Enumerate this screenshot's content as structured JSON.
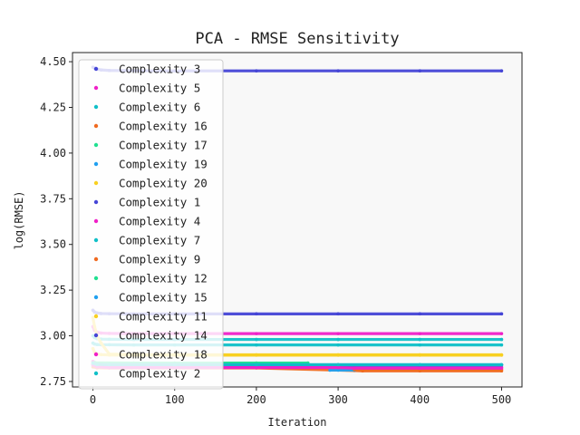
{
  "chart_data": {
    "type": "scatter",
    "title": "PCA - RMSE Sensitivity",
    "xlabel": "Iteration",
    "ylabel": "log(RMSE)",
    "xlim": [
      -25,
      525
    ],
    "ylim": [
      2.72,
      4.55
    ],
    "x_ticks": [
      0,
      100,
      200,
      300,
      400,
      500
    ],
    "y_ticks": [
      2.75,
      3.0,
      3.25,
      3.5,
      3.75,
      4.0,
      4.25,
      4.5
    ],
    "x_tick_labels": [
      "0",
      "100",
      "200",
      "300",
      "400",
      "500"
    ],
    "y_tick_labels": [
      "2.75",
      "3.00",
      "3.25",
      "3.50",
      "3.75",
      "4.00",
      "4.25",
      "4.50"
    ],
    "grid": false,
    "legend_position": "upper-left",
    "background": "#f8f8f8",
    "series": [
      {
        "name": "Complexity 3",
        "color": "#4545d6",
        "x": [
          0,
          2,
          5,
          10,
          20,
          50,
          100,
          200,
          300,
          400,
          500
        ],
        "y": [
          4.47,
          4.465,
          4.46,
          4.455,
          4.452,
          4.451,
          4.45,
          4.45,
          4.45,
          4.45,
          4.45
        ]
      },
      {
        "name": "Complexity 5",
        "color": "#f020c8",
        "x": [
          0,
          2,
          5,
          10,
          20,
          50,
          100,
          200,
          300,
          400,
          500
        ],
        "y": [
          3.05,
          3.03,
          3.02,
          3.015,
          3.013,
          3.012,
          3.012,
          3.012,
          3.012,
          3.012,
          3.012
        ]
      },
      {
        "name": "Complexity 6",
        "color": "#10c0c8",
        "x": [
          0,
          2,
          5,
          10,
          20,
          50,
          100,
          200,
          300,
          400,
          500
        ],
        "y": [
          3.0,
          2.99,
          2.985,
          2.982,
          2.981,
          2.98,
          2.98,
          2.98,
          2.98,
          2.98,
          2.98
        ]
      },
      {
        "name": "Complexity 16",
        "color": "#f06a20",
        "x": [
          0,
          5,
          20,
          100,
          200,
          320,
          330,
          400,
          500
        ],
        "y": [
          2.83,
          2.825,
          2.824,
          2.824,
          2.824,
          2.81,
          2.808,
          2.808,
          2.808
        ]
      },
      {
        "name": "Complexity 17",
        "color": "#20e090",
        "x": [
          0,
          5,
          20,
          100,
          200,
          263
        ],
        "y": [
          2.86,
          2.85,
          2.85,
          2.849,
          2.849,
          2.849
        ]
      },
      {
        "name": "Complexity 19",
        "color": "#20a0f0",
        "x": [
          290,
          300,
          320
        ],
        "y": [
          2.812,
          2.812,
          2.812
        ]
      },
      {
        "name": "Complexity 20",
        "color": "#f8d020",
        "x": [
          0,
          2,
          5,
          10,
          20,
          50,
          100,
          200,
          300,
          400,
          500
        ],
        "y": [
          2.93,
          2.91,
          2.9,
          2.897,
          2.895,
          2.894,
          2.894,
          2.894,
          2.894,
          2.894,
          2.894
        ]
      },
      {
        "name": "Complexity 1",
        "color": "#4545d6",
        "x": [
          0,
          2,
          5,
          10,
          20,
          50,
          100,
          200,
          300,
          400,
          500
        ],
        "y": [
          3.14,
          3.13,
          3.125,
          3.122,
          3.121,
          3.12,
          3.12,
          3.12,
          3.12,
          3.12,
          3.12
        ]
      },
      {
        "name": "Complexity 4",
        "color": "#f020c8",
        "x": [
          0,
          5,
          20,
          100,
          200,
          300,
          320,
          400,
          500
        ],
        "y": [
          2.86,
          2.835,
          2.83,
          2.83,
          2.83,
          2.83,
          2.828,
          2.828,
          2.828
        ]
      },
      {
        "name": "Complexity 7",
        "color": "#10c0c8",
        "x": [
          0,
          2,
          5,
          10,
          20,
          50,
          100,
          200,
          300,
          400,
          500
        ],
        "y": [
          2.96,
          2.955,
          2.952,
          2.951,
          2.951,
          2.95,
          2.95,
          2.95,
          2.95,
          2.95,
          2.95
        ]
      },
      {
        "name": "Complexity 9",
        "color": "#f06a20",
        "x": [
          320,
          400,
          500
        ],
        "y": [
          2.815,
          2.815,
          2.815
        ]
      },
      {
        "name": "Complexity 12",
        "color": "#20e090",
        "x": [
          0,
          50,
          100,
          200,
          263
        ],
        "y": [
          2.852,
          2.851,
          2.851,
          2.851,
          2.851
        ]
      },
      {
        "name": "Complexity 15",
        "color": "#20a0f0",
        "x": [
          0,
          50,
          100,
          200,
          300,
          400,
          500
        ],
        "y": [
          2.84,
          2.84,
          2.84,
          2.84,
          2.84,
          2.84,
          2.84
        ]
      },
      {
        "name": "Complexity 11",
        "color": "#f8d020",
        "x": [
          0,
          2,
          5,
          10,
          20,
          50,
          100,
          200,
          300,
          400,
          500
        ],
        "y": [
          3.1,
          3.05,
          3.0,
          2.96,
          2.9,
          2.897,
          2.896,
          2.896,
          2.896,
          2.896,
          2.896
        ]
      },
      {
        "name": "Complexity 14",
        "color": "#4545d6",
        "x": [
          0,
          5,
          20,
          100,
          200,
          300,
          400,
          500
        ],
        "y": [
          2.845,
          2.842,
          2.841,
          2.841,
          2.841,
          2.841,
          2.841,
          2.841
        ]
      },
      {
        "name": "Complexity 18",
        "color": "#f020c8",
        "x": [
          0,
          5,
          20,
          100,
          200,
          300,
          320,
          400,
          500
        ],
        "y": [
          2.84,
          2.83,
          2.826,
          2.826,
          2.826,
          2.826,
          2.823,
          2.823,
          2.823
        ]
      },
      {
        "name": "Complexity 2",
        "color": "#10c0c8",
        "x": [
          0,
          5,
          20,
          100,
          200,
          300,
          400,
          500
        ],
        "y": [
          2.85,
          2.843,
          2.842,
          2.842,
          2.842,
          2.842,
          2.842,
          2.842
        ]
      }
    ]
  }
}
